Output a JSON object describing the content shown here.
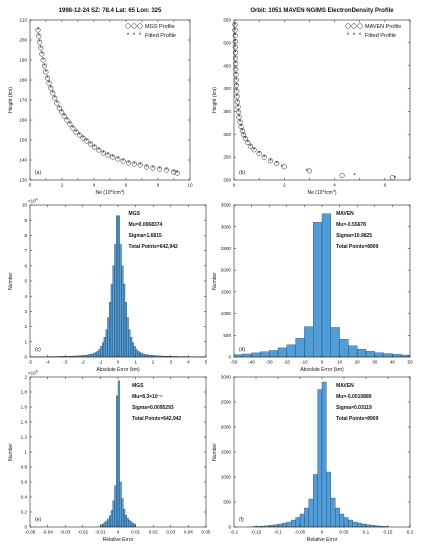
{
  "chart_data": [
    {
      "type": "scatter",
      "title": "1998-12-24 SZ: 78.4 Lat: 65 Lon: 325",
      "panel_label": "(a)",
      "xlabel": "Ne (10⁴/cm³)",
      "xlabel_main": "Ne (10",
      "xlabel_sup": "4",
      "xlabel_tail": "/cm",
      "xlabel_sup2": "3",
      "xlabel_end": ")",
      "ylabel": "Height (km)",
      "xlim": [
        0,
        10
      ],
      "ylim": [
        130,
        210
      ],
      "x_ticks": [
        "0",
        "1",
        "2",
        "3",
        "4",
        "5",
        "6",
        "7",
        "8",
        "9",
        "10"
      ],
      "x_tick_values": [
        0,
        1,
        2,
        3,
        4,
        5,
        6,
        7,
        8,
        9,
        10
      ],
      "x_tick_labels_shown": [
        "0",
        "2",
        "4",
        "6",
        "8",
        "10"
      ],
      "y_ticks": [
        "130",
        "140",
        "150",
        "160",
        "170",
        "180",
        "190",
        "200",
        "210"
      ],
      "y_tick_values": [
        130,
        140,
        150,
        160,
        170,
        180,
        190,
        200,
        210
      ],
      "legend": [
        "MGS Profile",
        "Fitted Profile"
      ],
      "legend_position": "top-right",
      "series": [
        {
          "name": "MGS Profile",
          "marker": "open-circle",
          "x": [
            0.5,
            0.55,
            0.6,
            0.67,
            0.74,
            0.82,
            0.9,
            0.99,
            1.09,
            1.19,
            1.3,
            1.42,
            1.55,
            1.68,
            1.83,
            1.98,
            2.14,
            2.31,
            2.49,
            2.68,
            2.88,
            3.09,
            3.31,
            3.54,
            3.78,
            4.03,
            4.3,
            4.58,
            4.87,
            5.17,
            5.49,
            5.82,
            6.16,
            6.52,
            6.89,
            7.28,
            7.68,
            8.1,
            8.53,
            8.98,
            9.2
          ],
          "y": [
            205,
            202,
            199,
            196,
            193,
            190,
            187,
            184,
            181,
            178.5,
            176,
            173.5,
            171,
            168.5,
            166,
            164,
            162,
            160,
            158,
            156,
            154,
            152.5,
            151,
            149.5,
            148,
            146.5,
            145,
            143.5,
            142.5,
            141.5,
            140.5,
            139.5,
            138.5,
            138,
            137.5,
            136.5,
            136,
            135.5,
            135,
            134,
            133.5
          ]
        },
        {
          "name": "Fitted Profile",
          "marker": "star",
          "x": [
            0.5,
            0.55,
            0.6,
            0.67,
            0.74,
            0.82,
            0.9,
            0.99,
            1.09,
            1.19,
            1.3,
            1.42,
            1.55,
            1.68,
            1.83,
            1.98,
            2.14,
            2.31,
            2.49,
            2.68,
            2.88,
            3.09,
            3.31,
            3.54,
            3.78,
            4.03,
            4.3,
            4.58,
            4.87,
            5.17,
            5.49,
            5.82,
            6.16,
            6.52,
            6.89,
            7.28,
            7.68,
            8.1,
            8.53,
            8.98,
            9.2
          ],
          "y": [
            205,
            202,
            199,
            196,
            193,
            190,
            187,
            184,
            181,
            178.5,
            176,
            173.5,
            171,
            168.5,
            166,
            164,
            162,
            160,
            158,
            156,
            154,
            152.5,
            151,
            149.5,
            148,
            146.5,
            145,
            143.5,
            142.5,
            141.5,
            140.5,
            139.5,
            138.5,
            138,
            137.5,
            136.5,
            136,
            135.5,
            135,
            134,
            133.5
          ]
        }
      ]
    },
    {
      "type": "scatter",
      "title": "Orbit: 1051 MAVEN NGIMS ElectronDensity Profile",
      "panel_label": "(b)",
      "xlabel": "Ne (10⁴/cm³)",
      "xlabel_main": "Ne (10",
      "xlabel_sup": "4",
      "xlabel_tail": "/cm",
      "xlabel_sup2": "3",
      "xlabel_end": ")",
      "ylabel": "Height (km)",
      "xlim": [
        0,
        7
      ],
      "ylim": [
        200,
        550
      ],
      "x_ticks": [
        "0",
        "1",
        "2",
        "3",
        "4",
        "5",
        "6",
        "7"
      ],
      "x_tick_values": [
        0,
        1,
        2,
        3,
        4,
        5,
        6,
        7
      ],
      "x_tick_labels_shown": [
        "0",
        "2",
        "4",
        "6"
      ],
      "y_ticks": [
        "200",
        "250",
        "300",
        "350",
        "400",
        "450",
        "500",
        "550"
      ],
      "y_tick_values": [
        200,
        250,
        300,
        350,
        400,
        450,
        500,
        550
      ],
      "legend": [
        "MAVEN Profile",
        "Fitted Profile"
      ],
      "legend_position": "top-right",
      "series": [
        {
          "name": "MAVEN Profile",
          "marker": "open-circle",
          "x": [
            0.04,
            0.04,
            0.05,
            0.05,
            0.05,
            0.06,
            0.06,
            0.07,
            0.07,
            0.08,
            0.09,
            0.1,
            0.11,
            0.12,
            0.14,
            0.16,
            0.18,
            0.2,
            0.24,
            0.28,
            0.33,
            0.38,
            0.45,
            0.55,
            0.65,
            0.8,
            1.0,
            1.2,
            1.45,
            1.7,
            2.0,
            3.0,
            4.3,
            6.3
          ],
          "y": [
            540,
            528,
            516,
            503,
            491,
            479,
            467,
            455,
            443,
            431,
            419,
            407,
            395,
            383,
            371,
            360,
            349,
            338,
            327,
            317,
            308,
            299,
            291,
            282,
            274,
            266,
            258,
            250,
            242,
            236,
            229,
            220,
            210,
            205
          ]
        },
        {
          "name": "Fitted Profile",
          "marker": "star",
          "x": [
            0.04,
            0.04,
            0.05,
            0.05,
            0.05,
            0.06,
            0.06,
            0.07,
            0.07,
            0.08,
            0.09,
            0.1,
            0.11,
            0.12,
            0.14,
            0.16,
            0.18,
            0.2,
            0.24,
            0.28,
            0.33,
            0.38,
            0.45,
            0.55,
            0.65,
            0.8,
            1.0,
            1.2,
            1.45,
            1.7,
            1.9,
            2.9,
            4.8,
            6.4
          ],
          "y": [
            540,
            528,
            516,
            503,
            491,
            479,
            467,
            455,
            443,
            431,
            419,
            407,
            395,
            383,
            371,
            360,
            349,
            338,
            327,
            317,
            308,
            299,
            291,
            282,
            274,
            266,
            258,
            250,
            242,
            236,
            229,
            220,
            210,
            205
          ]
        }
      ]
    },
    {
      "type": "bar",
      "title": "",
      "panel_label": "(c)",
      "xlabel": "Absolute Error (km)",
      "ylabel": "Number",
      "y_exponent": "×10⁴",
      "y_exp_base": "×10",
      "y_exp_sup": "4",
      "xlim": [
        -5,
        5
      ],
      "ylim": [
        0,
        10
      ],
      "x_ticks": [
        "-5",
        "-4",
        "-3",
        "-2",
        "-1",
        "0",
        "1",
        "2",
        "3",
        "4",
        "5"
      ],
      "x_tick_values": [
        -5,
        -4,
        -3,
        -2,
        -1,
        0,
        1,
        2,
        3,
        4,
        5
      ],
      "y_ticks": [
        "0",
        "1",
        "2",
        "3",
        "4",
        "5",
        "6",
        "7",
        "8",
        "9",
        "10"
      ],
      "y_tick_values": [
        0,
        1,
        2,
        3,
        4,
        5,
        6,
        7,
        8,
        9,
        10
      ],
      "annotation": {
        "lines": [
          "MGS",
          "Mu=0.0068374",
          "Sigma=1.6815",
          "Total Points=642,942"
        ]
      },
      "bin_edges_step": 0.1,
      "bins_x": [
        -4.95,
        -4.85,
        -4.75,
        -4.65,
        -4.55,
        -4.45,
        -4.35,
        -4.25,
        -4.15,
        -4.05,
        -3.95,
        -3.85,
        -3.75,
        -3.65,
        -3.55,
        -3.45,
        -3.35,
        -3.25,
        -3.15,
        -3.05,
        -2.95,
        -2.85,
        -2.75,
        -2.65,
        -2.55,
        -2.45,
        -2.35,
        -2.25,
        -2.15,
        -2.05,
        -1.95,
        -1.85,
        -1.75,
        -1.65,
        -1.55,
        -1.45,
        -1.35,
        -1.25,
        -1.15,
        -1.05,
        -0.95,
        -0.85,
        -0.75,
        -0.65,
        -0.55,
        -0.45,
        -0.35,
        -0.25,
        -0.15,
        -0.05,
        0.05,
        0.15,
        0.25,
        0.35,
        0.45,
        0.55,
        0.65,
        0.75,
        0.85,
        0.95,
        1.05,
        1.15,
        1.25,
        1.35,
        1.45,
        1.55,
        1.65,
        1.75,
        1.85,
        1.95,
        2.05,
        2.15,
        2.25,
        2.35,
        2.45,
        2.55,
        2.65,
        2.75,
        2.85,
        2.95,
        3.05,
        3.15,
        3.25,
        3.35,
        3.45,
        3.55,
        3.65,
        3.75,
        3.85,
        3.95,
        4.05,
        4.15,
        4.25,
        4.35,
        4.45,
        4.55,
        4.65,
        4.75,
        4.85,
        4.95
      ],
      "values": [
        0.02,
        0.02,
        0.02,
        0.02,
        0.02,
        0.02,
        0.02,
        0.02,
        0.02,
        0.02,
        0.03,
        0.03,
        0.03,
        0.03,
        0.03,
        0.03,
        0.04,
        0.04,
        0.04,
        0.04,
        0.05,
        0.05,
        0.05,
        0.06,
        0.06,
        0.07,
        0.07,
        0.08,
        0.08,
        0.09,
        0.1,
        0.11,
        0.13,
        0.15,
        0.17,
        0.2,
        0.24,
        0.3,
        0.38,
        0.5,
        0.7,
        0.95,
        1.3,
        1.8,
        2.6,
        3.6,
        4.8,
        6.0,
        7.4,
        9.3,
        9.3,
        7.4,
        6.0,
        4.8,
        3.6,
        2.6,
        1.8,
        1.3,
        0.95,
        0.7,
        0.5,
        0.38,
        0.3,
        0.24,
        0.2,
        0.17,
        0.15,
        0.13,
        0.11,
        0.1,
        0.09,
        0.08,
        0.08,
        0.07,
        0.07,
        0.06,
        0.06,
        0.05,
        0.05,
        0.05,
        0.04,
        0.04,
        0.04,
        0.04,
        0.03,
        0.03,
        0.03,
        0.03,
        0.03,
        0.03,
        0.02,
        0.02,
        0.02,
        0.02,
        0.02,
        0.02,
        0.02,
        0.02,
        0.02,
        0.02
      ]
    },
    {
      "type": "bar",
      "title": "",
      "panel_label": "(d)",
      "xlabel": "Absolute Error (km)",
      "ylabel": "Number",
      "xlim": [
        -50,
        50
      ],
      "ylim": [
        0,
        3500
      ],
      "x_ticks": [
        "-50",
        "-40",
        "-30",
        "-20",
        "-10",
        "0",
        "10",
        "20",
        "30",
        "40",
        "50"
      ],
      "x_tick_values": [
        -50,
        -40,
        -30,
        -20,
        -10,
        0,
        10,
        20,
        30,
        40,
        50
      ],
      "y_ticks": [
        "0",
        "500",
        "1000",
        "1500",
        "2000",
        "2500",
        "3000",
        "3500"
      ],
      "y_tick_values": [
        0,
        500,
        1000,
        1500,
        2000,
        2500,
        3000,
        3500
      ],
      "annotation": {
        "lines": [
          "MAVEN",
          "Mu=-0.55678",
          "Sigma=10.9825",
          "Total Points=8909"
        ]
      },
      "bin_edges_step": 5,
      "bins_x": [
        -47.5,
        -42.5,
        -37.5,
        -32.5,
        -27.5,
        -22.5,
        -17.5,
        -12.5,
        -7.5,
        -2.5,
        2.5,
        7.5,
        12.5,
        17.5,
        22.5,
        27.5,
        32.5,
        37.5,
        42.5,
        47.5
      ],
      "values": [
        55,
        70,
        95,
        120,
        150,
        210,
        280,
        430,
        700,
        3100,
        3300,
        680,
        410,
        260,
        180,
        130,
        100,
        80,
        60,
        45
      ]
    },
    {
      "type": "bar",
      "title": "",
      "panel_label": "(e)",
      "xlabel": "Relative Error",
      "ylabel": "Number",
      "y_exponent": "×10⁵",
      "y_exp_base": "×10",
      "y_exp_sup": "5",
      "xlim": [
        -0.05,
        0.05
      ],
      "ylim": [
        0,
        2
      ],
      "x_ticks": [
        "-0.05",
        "-0.04",
        "-0.03",
        "-0.02",
        "-0.01",
        "0",
        "0.01",
        "0.02",
        "0.03",
        "0.04",
        "0.05"
      ],
      "x_tick_values": [
        -0.05,
        -0.04,
        -0.03,
        -0.02,
        -0.01,
        0,
        0.01,
        0.02,
        0.03,
        0.04,
        0.05
      ],
      "y_ticks": [
        "0",
        "0.2",
        "0.4",
        "0.6",
        "0.8",
        "1",
        "1.2",
        "1.4",
        "1.6",
        "1.8",
        "2"
      ],
      "y_tick_values": [
        0,
        0.2,
        0.4,
        0.6,
        0.8,
        1,
        1.2,
        1.4,
        1.6,
        1.8,
        2
      ],
      "annotation": {
        "lines": [
          "MGS",
          "Mu=8.3×10⁻⁵",
          "Sigma=0.0095293",
          "Total Points=642,942"
        ]
      },
      "bin_edges_step": 0.001,
      "bins_x": [
        -0.0095,
        -0.0085,
        -0.0075,
        -0.0065,
        -0.0055,
        -0.0045,
        -0.0035,
        -0.0025,
        -0.0015,
        -0.0005,
        0.0005,
        0.0015,
        0.0025,
        0.0035,
        0.0045,
        0.0055,
        0.0065,
        0.0075,
        0.0085,
        0.0095
      ],
      "values": [
        0.03,
        0.04,
        0.06,
        0.08,
        0.11,
        0.15,
        0.22,
        0.35,
        0.55,
        1.75,
        1.95,
        0.6,
        0.38,
        0.24,
        0.16,
        0.12,
        0.09,
        0.07,
        0.05,
        0.04
      ]
    },
    {
      "type": "bar",
      "title": "",
      "panel_label": "(f)",
      "xlabel": "Relative Error",
      "ylabel": "Number",
      "xlim": [
        -0.2,
        0.2
      ],
      "ylim": [
        0,
        3000
      ],
      "x_ticks": [
        "-0.2",
        "-0.15",
        "-0.1",
        "-0.05",
        "0",
        "0.05",
        "0.1",
        "0.15",
        "0.2"
      ],
      "x_tick_values": [
        -0.2,
        -0.15,
        -0.1,
        -0.05,
        0,
        0.05,
        0.1,
        0.15,
        0.2
      ],
      "y_ticks": [
        "0",
        "500",
        "1000",
        "1500",
        "2000",
        "2500",
        "3000"
      ],
      "y_tick_values": [
        0,
        500,
        1000,
        1500,
        2000,
        2500,
        3000
      ],
      "annotation": {
        "lines": [
          "MAVEN",
          "Mu=-0.0010889",
          "Sigma=0.03119",
          "Total Points=8909"
        ]
      },
      "bin_edges_step": 0.01,
      "bins_x": [
        -0.155,
        -0.145,
        -0.135,
        -0.125,
        -0.115,
        -0.105,
        -0.095,
        -0.085,
        -0.075,
        -0.065,
        -0.055,
        -0.045,
        -0.035,
        -0.025,
        -0.015,
        -0.005,
        0.005,
        0.015,
        0.025,
        0.035,
        0.045,
        0.055,
        0.065,
        0.075,
        0.085,
        0.095,
        0.105,
        0.115,
        0.125,
        0.135,
        0.145
      ],
      "values": [
        8,
        12,
        18,
        25,
        35,
        45,
        60,
        80,
        100,
        140,
        190,
        260,
        380,
        560,
        1050,
        2750,
        2900,
        1100,
        580,
        380,
        260,
        190,
        140,
        100,
        80,
        60,
        45,
        35,
        25,
        18,
        12
      ]
    }
  ]
}
